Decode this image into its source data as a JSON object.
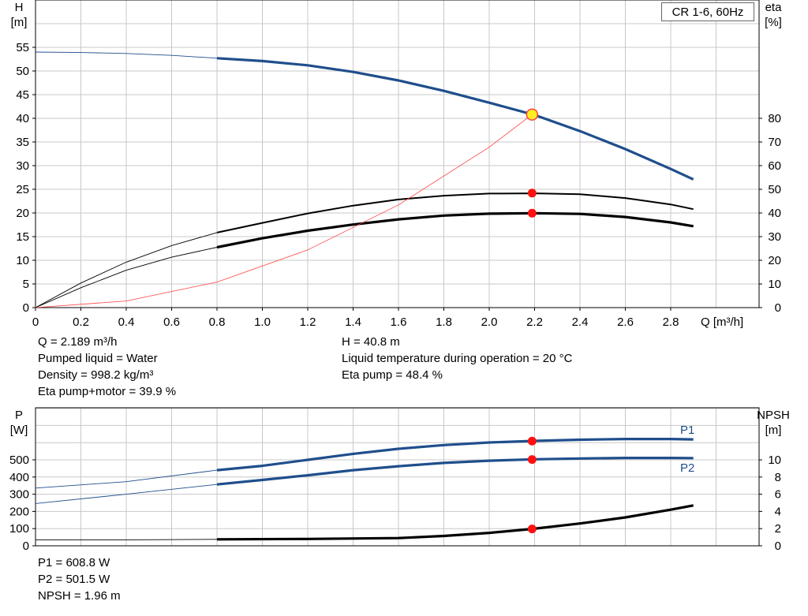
{
  "model_label": "CR 1-6, 60Hz",
  "top_info": {
    "left": [
      "Q = 2.189 m³/h",
      "Pumped liquid = Water",
      "Density = 998.2 kg/m³",
      "Eta pump+motor = 39.9 %"
    ],
    "right": [
      "H = 40.8 m",
      "Liquid temperature during operation = 20 °C",
      "Eta pump = 48.4 %"
    ]
  },
  "bottom_info": [
    "P1 = 608.8 W",
    "P2 = 501.5 W",
    "NPSH = 1.96 m"
  ],
  "colors": {
    "head": "#1f4e8c",
    "eta": "#000000",
    "system": "#ff4040",
    "marker": "#ff1010",
    "marker_yellow": "#ffee22",
    "grid": "#c8c8c8"
  },
  "chart_data": [
    {
      "type": "line",
      "title": "",
      "xlabel": "Q [m³/h]",
      "ylabel_left": [
        "H",
        "[m]"
      ],
      "ylabel_right": [
        "eta",
        "[%]"
      ],
      "xlim": [
        0,
        3.1
      ],
      "ylim_left": [
        0,
        55
      ],
      "ylim_right": [
        0,
        80
      ],
      "x_ticks": [
        "0",
        "0.2",
        "0.4",
        "0.6",
        "0.8",
        "1.0",
        "1.2",
        "1.4",
        "1.6",
        "1.8",
        "2.0",
        "2.2",
        "2.4",
        "2.6",
        "2.8"
      ],
      "y_ticks_left": [
        "0",
        "5",
        "10",
        "15",
        "20",
        "25",
        "30",
        "35",
        "40",
        "45",
        "50",
        "55"
      ],
      "y_ticks_right": [
        "0",
        "10",
        "20",
        "30",
        "40",
        "50",
        "60",
        "70",
        "80"
      ],
      "grid": true,
      "operating_point_x": 2.189,
      "series": [
        {
          "axis": "left",
          "color": "#1f4e8c",
          "thin": [
            [
              0,
              54
            ],
            [
              0.2,
              53.9
            ],
            [
              0.4,
              53.7
            ],
            [
              0.6,
              53.3
            ],
            [
              0.8,
              52.7
            ]
          ],
          "thick": [
            [
              0.8,
              52.7
            ],
            [
              1.0,
              52.1
            ],
            [
              1.2,
              51.2
            ],
            [
              1.4,
              49.8
            ],
            [
              1.6,
              48.0
            ],
            [
              1.8,
              45.8
            ],
            [
              2.0,
              43.3
            ],
            [
              2.2,
              40.7
            ],
            [
              2.4,
              37.3
            ],
            [
              2.6,
              33.5
            ],
            [
              2.8,
              29.3
            ],
            [
              2.9,
              27.1
            ]
          ]
        },
        {
          "axis": "right",
          "color": "#000000",
          "thin": [
            [
              0,
              0
            ],
            [
              0.2,
              10.4
            ],
            [
              0.4,
              19.2
            ],
            [
              0.6,
              26.2
            ],
            [
              0.8,
              31.7
            ]
          ],
          "thick": [
            [
              0.8,
              31.7
            ],
            [
              1.0,
              35.8
            ],
            [
              1.2,
              39.8
            ],
            [
              1.4,
              43.1
            ],
            [
              1.6,
              45.7
            ],
            [
              1.8,
              47.3
            ],
            [
              2.0,
              48.2
            ],
            [
              2.2,
              48.3
            ],
            [
              2.4,
              47.9
            ],
            [
              2.6,
              46.3
            ],
            [
              2.8,
              43.6
            ],
            [
              2.9,
              41.6
            ]
          ]
        },
        {
          "axis": "right",
          "color": "#000000",
          "thick_line": true,
          "thin": [
            [
              0,
              0
            ],
            [
              0.2,
              8.4
            ],
            [
              0.4,
              15.8
            ],
            [
              0.6,
              21.3
            ],
            [
              0.8,
              25.5
            ]
          ],
          "thick": [
            [
              0.8,
              25.5
            ],
            [
              1.0,
              29.3
            ],
            [
              1.2,
              32.5
            ],
            [
              1.4,
              35.1
            ],
            [
              1.6,
              37.3
            ],
            [
              1.8,
              38.9
            ],
            [
              2.0,
              39.7
            ],
            [
              2.2,
              39.9
            ],
            [
              2.4,
              39.6
            ],
            [
              2.6,
              38.3
            ],
            [
              2.8,
              36.0
            ],
            [
              2.9,
              34.4
            ]
          ]
        },
        {
          "axis": "left",
          "color": "#ff4040",
          "system": true,
          "thin": [
            [
              0,
              0
            ],
            [
              0.4,
              1.4
            ],
            [
              0.8,
              5.4
            ],
            [
              1.2,
              12.2
            ],
            [
              1.6,
              21.7
            ],
            [
              2.0,
              33.9
            ],
            [
              2.189,
              40.8
            ]
          ]
        }
      ],
      "markers": [
        {
          "axis": "left",
          "y": 40.8,
          "style": "yellow"
        },
        {
          "axis": "right",
          "y": 48.4,
          "style": "red"
        },
        {
          "axis": "right",
          "y": 39.9,
          "style": "red"
        }
      ]
    },
    {
      "type": "line",
      "title": "",
      "ylabel_left": [
        "P",
        "[W]"
      ],
      "ylabel_right": [
        "NPSH",
        "[m]"
      ],
      "xlim": [
        0,
        3.1
      ],
      "ylim_left": [
        0,
        600
      ],
      "ylim_right": [
        0,
        12
      ],
      "y_ticks_left": [
        "0",
        "100",
        "200",
        "300",
        "400",
        "500"
      ],
      "y_ticks_right": [
        "0",
        "2",
        "4",
        "6",
        "8",
        "10"
      ],
      "grid": true,
      "series": [
        {
          "name": "P1",
          "axis": "left",
          "color": "#1f4e8c",
          "thin": [
            [
              0,
              336
            ],
            [
              0.4,
              373
            ],
            [
              0.8,
              440
            ]
          ],
          "thick": [
            [
              0.8,
              440
            ],
            [
              1.0,
              465
            ],
            [
              1.2,
              500
            ],
            [
              1.4,
              535
            ],
            [
              1.6,
              564
            ],
            [
              1.8,
              586
            ],
            [
              2.0,
              601
            ],
            [
              2.2,
              610
            ],
            [
              2.4,
              617
            ],
            [
              2.6,
              621
            ],
            [
              2.8,
              621
            ],
            [
              2.9,
              619
            ]
          ]
        },
        {
          "name": "P2",
          "axis": "left",
          "color": "#1f4e8c",
          "thin": [
            [
              0,
              246
            ],
            [
              0.4,
              300
            ],
            [
              0.8,
              357
            ]
          ],
          "thick": [
            [
              0.8,
              357
            ],
            [
              1.0,
              383
            ],
            [
              1.2,
              410
            ],
            [
              1.4,
              440
            ],
            [
              1.6,
              463
            ],
            [
              1.8,
              482
            ],
            [
              2.0,
              495
            ],
            [
              2.2,
              503
            ],
            [
              2.4,
              508
            ],
            [
              2.6,
              511
            ],
            [
              2.8,
              511
            ],
            [
              2.9,
              510
            ]
          ]
        },
        {
          "axis": "right",
          "color": "#000000",
          "thick_line": true,
          "thin": [
            [
              0,
              0.7
            ],
            [
              0.4,
              0.7
            ],
            [
              0.8,
              0.75
            ]
          ],
          "thick": [
            [
              0.8,
              0.75
            ],
            [
              1.2,
              0.8
            ],
            [
              1.6,
              0.9
            ],
            [
              1.8,
              1.15
            ],
            [
              2.0,
              1.5
            ],
            [
              2.189,
              1.96
            ],
            [
              2.4,
              2.6
            ],
            [
              2.6,
              3.3
            ],
            [
              2.8,
              4.2
            ],
            [
              2.9,
              4.7
            ]
          ]
        }
      ],
      "markers": [
        {
          "axis": "left",
          "y": 608.8,
          "style": "red"
        },
        {
          "axis": "left",
          "y": 501.5,
          "style": "red"
        },
        {
          "axis": "right",
          "y": 1.96,
          "style": "red"
        }
      ]
    }
  ]
}
